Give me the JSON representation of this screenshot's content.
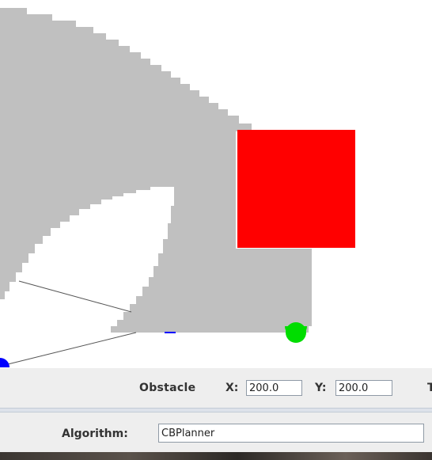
{
  "obstacle_panel": {
    "title": "Obstacle",
    "x_label": "X:",
    "x_value": "200.0",
    "y_label": "Y:",
    "y_value": "200.0",
    "cut_label": "T"
  },
  "algorithm_panel": {
    "label": "Algorithm:",
    "value": "CBPlanner"
  },
  "colors": {
    "configuration_space": "#c0c0c0",
    "obstacle": "#ff0000",
    "goal": "#00dd00",
    "robot": "#0000ff",
    "free_space": "#ffffff",
    "path": "#555555"
  }
}
